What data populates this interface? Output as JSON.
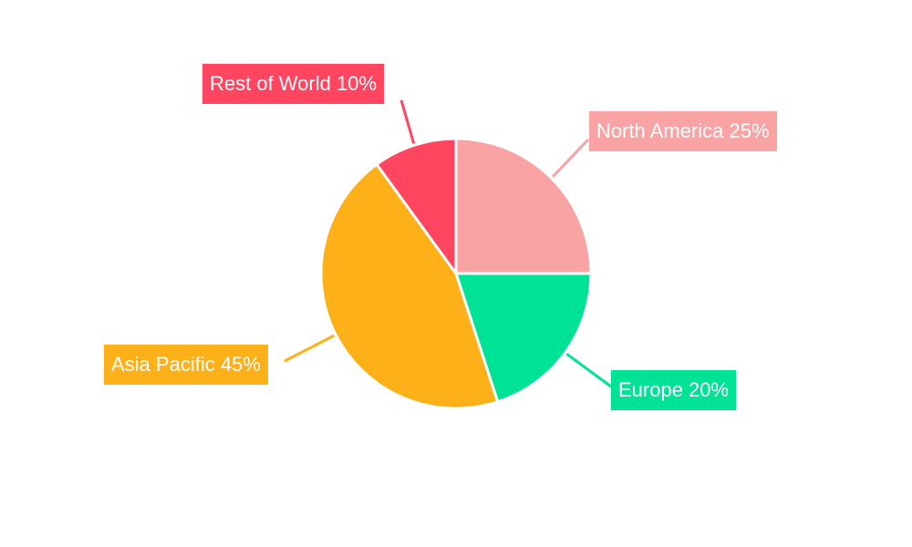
{
  "chart_data": {
    "type": "pie",
    "title": "",
    "start_angle": "top, clockwise",
    "slices": [
      {
        "name": "North America",
        "value": 25,
        "label": "North America 25%",
        "color": "#f9a3a4"
      },
      {
        "name": "Europe",
        "value": 20,
        "label": "Europe 20%",
        "color": "#00e396"
      },
      {
        "name": "Asia Pacific",
        "value": 45,
        "label": "Asia Pacific 45%",
        "color": "#feb019"
      },
      {
        "name": "Rest of World",
        "value": 10,
        "label": "Rest of World 10%",
        "color": "#ff4560"
      }
    ]
  }
}
